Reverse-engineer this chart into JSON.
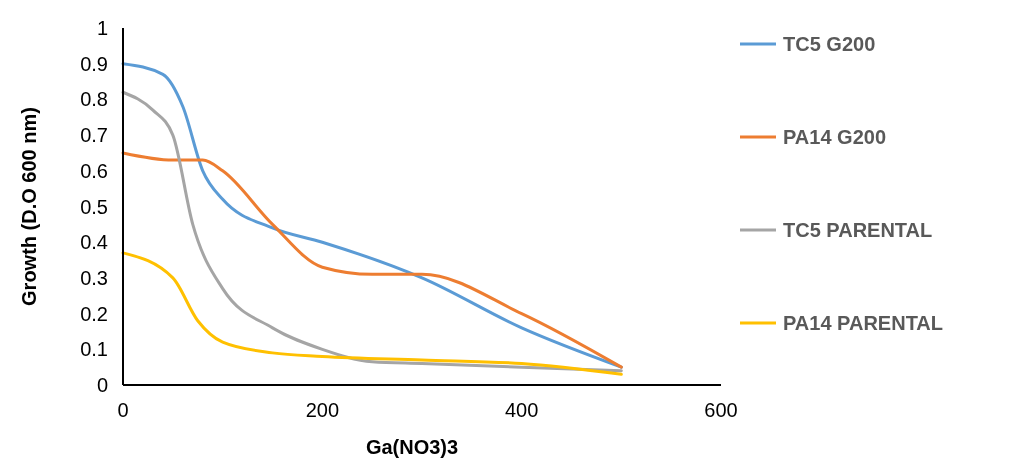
{
  "chart_data": {
    "type": "line",
    "xlabel": "Ga(NO3)3",
    "ylabel": "Growth (D.O 600 nm)",
    "xlim": [
      0,
      600
    ],
    "xticks": [
      0,
      200,
      400,
      600
    ],
    "ylim": [
      0,
      1
    ],
    "yticks": [
      0,
      0.1,
      0.2,
      0.3,
      0.4,
      0.5,
      0.6,
      0.7,
      0.8,
      0.9,
      1
    ],
    "grid": false,
    "legend": "right",
    "marker": "none",
    "line_style": "solid",
    "series": [
      {
        "name": "TC5 G200",
        "color": "#5b9bd5",
        "x": [
          0,
          40,
          60,
          80,
          100,
          150,
          200,
          300,
          400,
          500
        ],
        "values": [
          0.9,
          0.87,
          0.78,
          0.6,
          0.52,
          0.44,
          0.4,
          0.3,
          0.16,
          0.05
        ]
      },
      {
        "name": "PA14 G200",
        "color": "#ed7d31",
        "x": [
          0,
          50,
          80,
          100,
          150,
          200,
          250,
          300,
          400,
          500
        ],
        "values": [
          0.65,
          0.63,
          0.63,
          0.6,
          0.45,
          0.33,
          0.31,
          0.31,
          0.2,
          0.05
        ]
      },
      {
        "name": "TC5 PARENTAL",
        "color": "#a5a5a5",
        "x": [
          0,
          30,
          50,
          70,
          100,
          150,
          200,
          250,
          300,
          400,
          500
        ],
        "values": [
          0.82,
          0.77,
          0.7,
          0.45,
          0.27,
          0.16,
          0.1,
          0.065,
          0.06,
          0.05,
          0.04
        ]
      },
      {
        "name": "PA14 PARENTAL",
        "color": "#ffc000",
        "x": [
          0,
          50,
          75,
          100,
          150,
          200,
          300,
          400,
          500
        ],
        "values": [
          0.37,
          0.3,
          0.18,
          0.12,
          0.09,
          0.08,
          0.07,
          0.06,
          0.03
        ]
      }
    ]
  }
}
